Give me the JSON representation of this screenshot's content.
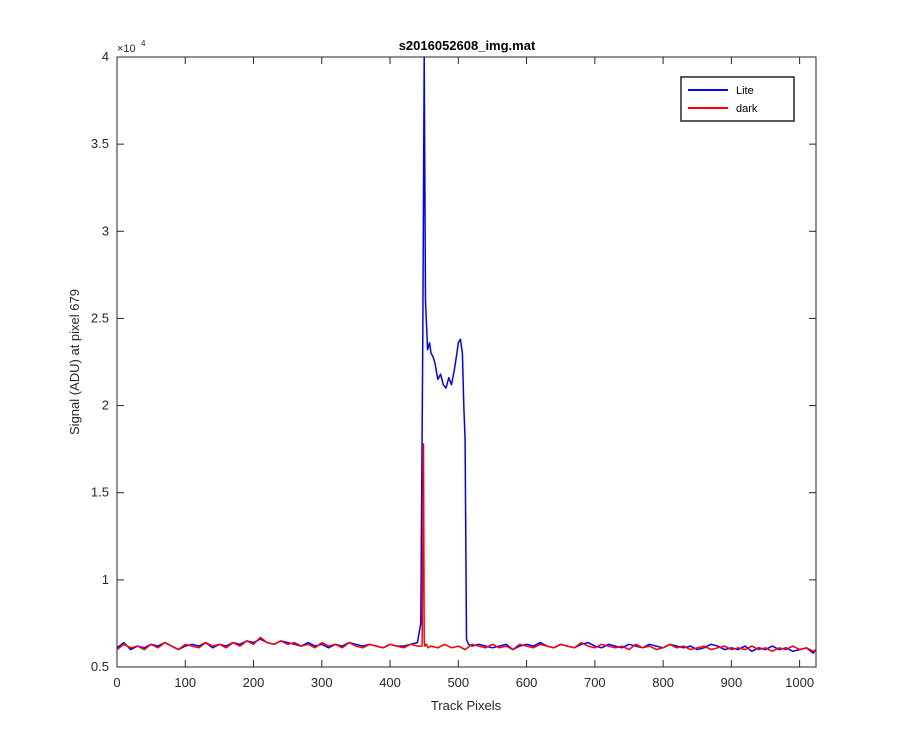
{
  "chart_data": {
    "type": "line",
    "title": "s2016052608_img.mat",
    "xlabel": "Track Pixels",
    "ylabel": "Signal (ADU) at pixel 679",
    "y_exponent_label": "×10",
    "y_exponent_power": "4",
    "xlim": [
      0,
      1024
    ],
    "ylim": [
      0.5,
      4
    ],
    "x_ticks": [
      0,
      100,
      200,
      300,
      400,
      500,
      600,
      700,
      800,
      900,
      1000
    ],
    "y_ticks": [
      0.5,
      1,
      1.5,
      2,
      2.5,
      3,
      3.5,
      4
    ],
    "y_tick_labels": [
      "0.5",
      "1",
      "1.5",
      "2",
      "2.5",
      "3",
      "3.5",
      "4"
    ],
    "grid": false,
    "legend_position": "top-right",
    "series": [
      {
        "name": "Lite",
        "color": "#0000ff",
        "x": [
          0,
          10,
          20,
          30,
          40,
          50,
          60,
          70,
          80,
          90,
          100,
          110,
          120,
          130,
          140,
          150,
          160,
          170,
          180,
          190,
          200,
          210,
          220,
          230,
          240,
          250,
          260,
          270,
          280,
          290,
          300,
          310,
          320,
          330,
          340,
          350,
          360,
          370,
          380,
          390,
          400,
          410,
          420,
          430,
          440,
          445,
          448,
          450,
          452,
          455,
          458,
          460,
          463,
          466,
          470,
          474,
          478,
          482,
          486,
          490,
          494,
          498,
          500,
          503,
          506,
          508,
          510,
          512,
          515,
          520,
          530,
          540,
          550,
          560,
          570,
          580,
          590,
          600,
          610,
          620,
          630,
          640,
          650,
          660,
          670,
          680,
          690,
          700,
          710,
          720,
          730,
          740,
          750,
          760,
          770,
          780,
          790,
          800,
          810,
          820,
          830,
          840,
          850,
          860,
          870,
          880,
          890,
          900,
          910,
          920,
          930,
          940,
          950,
          960,
          970,
          980,
          990,
          1000,
          1010,
          1020,
          1024
        ],
        "y": [
          0.61,
          0.64,
          0.6,
          0.62,
          0.61,
          0.63,
          0.62,
          0.64,
          0.62,
          0.6,
          0.62,
          0.63,
          0.62,
          0.64,
          0.61,
          0.63,
          0.62,
          0.64,
          0.63,
          0.65,
          0.64,
          0.66,
          0.64,
          0.63,
          0.65,
          0.64,
          0.63,
          0.62,
          0.64,
          0.62,
          0.63,
          0.61,
          0.63,
          0.62,
          0.64,
          0.63,
          0.62,
          0.63,
          0.62,
          0.61,
          0.63,
          0.62,
          0.62,
          0.63,
          0.64,
          0.75,
          2.4,
          4.0,
          2.6,
          2.32,
          2.36,
          2.3,
          2.28,
          2.24,
          2.15,
          2.18,
          2.12,
          2.1,
          2.16,
          2.12,
          2.2,
          2.3,
          2.36,
          2.38,
          2.3,
          2.0,
          1.8,
          0.66,
          0.63,
          0.62,
          0.63,
          0.62,
          0.61,
          0.62,
          0.63,
          0.6,
          0.62,
          0.63,
          0.62,
          0.64,
          0.62,
          0.61,
          0.63,
          0.62,
          0.61,
          0.63,
          0.64,
          0.62,
          0.61,
          0.63,
          0.62,
          0.61,
          0.63,
          0.62,
          0.61,
          0.63,
          0.62,
          0.61,
          0.63,
          0.62,
          0.61,
          0.62,
          0.6,
          0.61,
          0.63,
          0.62,
          0.6,
          0.61,
          0.6,
          0.62,
          0.59,
          0.61,
          0.6,
          0.62,
          0.6,
          0.61,
          0.59,
          0.6,
          0.61,
          0.58,
          0.6
        ]
      },
      {
        "name": "dark",
        "color": "#ff0000",
        "x": [
          0,
          10,
          20,
          30,
          40,
          50,
          60,
          70,
          80,
          90,
          100,
          110,
          120,
          130,
          140,
          150,
          160,
          170,
          180,
          190,
          200,
          210,
          220,
          230,
          240,
          250,
          260,
          270,
          280,
          290,
          300,
          310,
          320,
          330,
          340,
          350,
          360,
          370,
          380,
          390,
          400,
          410,
          420,
          430,
          440,
          447,
          449,
          450,
          451,
          453,
          456,
          460,
          470,
          480,
          490,
          500,
          510,
          520,
          530,
          540,
          550,
          560,
          570,
          580,
          590,
          600,
          610,
          620,
          630,
          640,
          650,
          660,
          670,
          680,
          690,
          700,
          710,
          720,
          730,
          740,
          750,
          760,
          770,
          780,
          790,
          800,
          810,
          820,
          830,
          840,
          850,
          860,
          870,
          880,
          890,
          900,
          910,
          920,
          930,
          940,
          950,
          960,
          970,
          980,
          990,
          1000,
          1010,
          1020,
          1024
        ],
        "y": [
          0.6,
          0.63,
          0.61,
          0.62,
          0.6,
          0.63,
          0.61,
          0.64,
          0.62,
          0.6,
          0.63,
          0.62,
          0.61,
          0.64,
          0.62,
          0.63,
          0.61,
          0.64,
          0.62,
          0.65,
          0.63,
          0.67,
          0.64,
          0.63,
          0.65,
          0.63,
          0.64,
          0.62,
          0.63,
          0.61,
          0.64,
          0.62,
          0.63,
          0.61,
          0.64,
          0.62,
          0.61,
          0.63,
          0.62,
          0.61,
          0.63,
          0.62,
          0.61,
          0.63,
          0.62,
          0.62,
          1.78,
          0.65,
          0.62,
          0.63,
          0.61,
          0.62,
          0.61,
          0.63,
          0.61,
          0.62,
          0.6,
          0.63,
          0.62,
          0.61,
          0.63,
          0.61,
          0.62,
          0.6,
          0.63,
          0.62,
          0.61,
          0.63,
          0.62,
          0.61,
          0.63,
          0.62,
          0.61,
          0.64,
          0.62,
          0.61,
          0.63,
          0.62,
          0.61,
          0.62,
          0.6,
          0.63,
          0.61,
          0.62,
          0.6,
          0.61,
          0.63,
          0.61,
          0.62,
          0.6,
          0.61,
          0.62,
          0.6,
          0.61,
          0.62,
          0.6,
          0.61,
          0.6,
          0.62,
          0.6,
          0.61,
          0.59,
          0.61,
          0.6,
          0.62,
          0.6,
          0.61,
          0.59,
          0.6
        ]
      }
    ]
  }
}
